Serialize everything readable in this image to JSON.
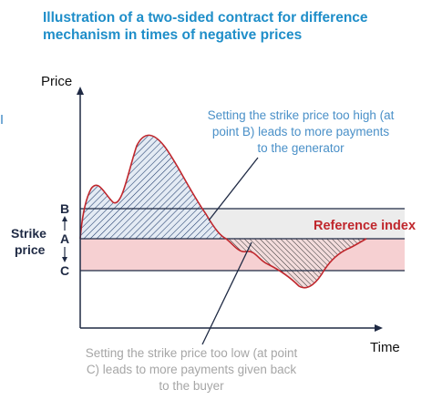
{
  "title": {
    "line1": "Illustration of a two-sided contract for difference",
    "line2": "mechanism in times of negative prices"
  },
  "axes": {
    "y_label": "Price",
    "x_label": "Time"
  },
  "levels": {
    "B": "B",
    "A": "A",
    "C": "C",
    "strike_label_line1": "Strike",
    "strike_label_line2": "price"
  },
  "reference_index_label": "Reference index",
  "annotation_high": {
    "line1": "Setting the strike price too high (at",
    "line2": "point B) leads to more payments",
    "line3": "to the generator"
  },
  "annotation_low": {
    "line1": "Setting the strike price too low (at point",
    "line2": "C) leads to more payments given back",
    "line3": "to the buyer"
  },
  "colors": {
    "title": "#1f8ec9",
    "annotation_high": "#4a90c8",
    "annotation_low": "#a6a6a6",
    "reference_index": "#c0272d",
    "curve": "#c0272d",
    "band_upper": "#ececec",
    "band_lower": "#f6d0d2",
    "axis": "#1f2a44"
  }
}
